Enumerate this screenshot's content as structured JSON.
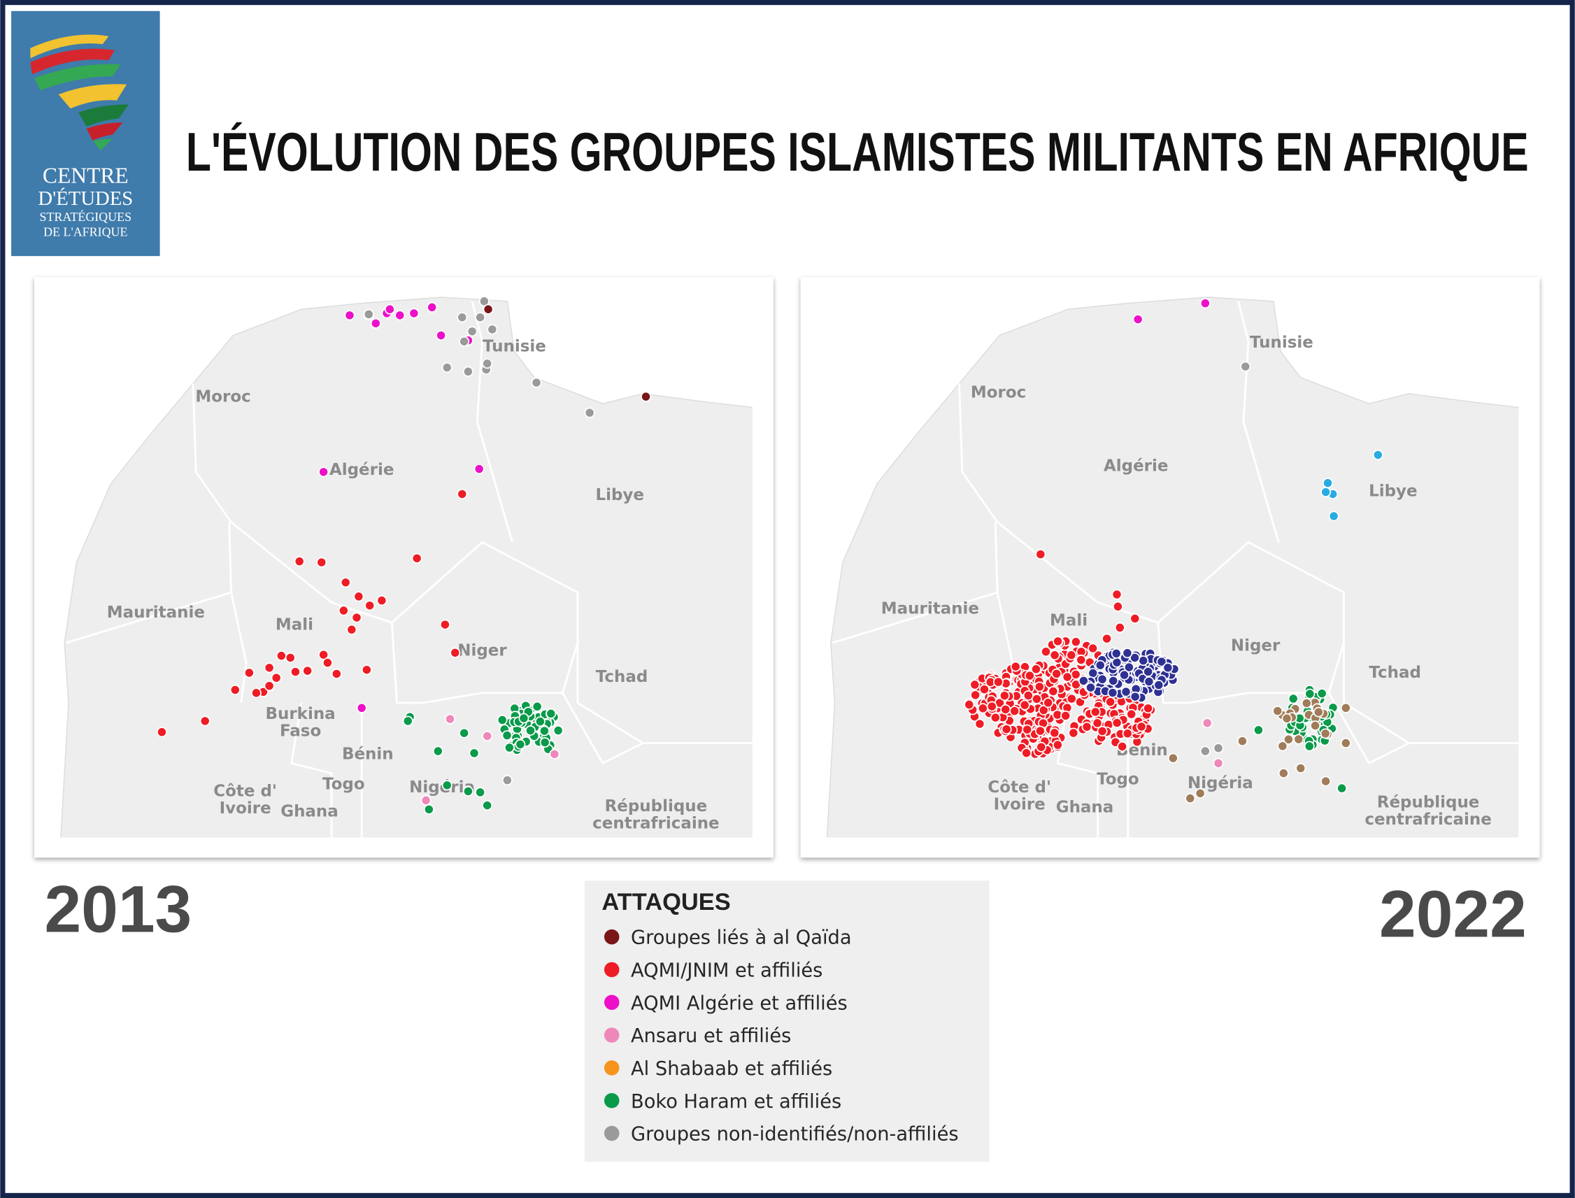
{
  "logo": {
    "lines": [
      "CENTRE",
      "D'ÉTUDES",
      "STRATÉGIQUES",
      "DE L'AFRIQUE"
    ]
  },
  "title": "L'ÉVOLUTION DES GROUPES ISLAMISTES MILITANTS EN AFRIQUE",
  "maps": [
    {
      "year": "2013",
      "labels": [
        [
          "Moroc"
        ],
        [
          "Algérie"
        ],
        [
          "Tunisie"
        ],
        [
          "Libye"
        ],
        [
          "Mauritanie"
        ],
        [
          "Mali"
        ],
        [
          "Niger"
        ],
        [
          "Tchad"
        ],
        [
          "Burkina",
          "Faso"
        ],
        [
          "Bénin"
        ],
        [
          "Côte d'",
          "Ivoire"
        ],
        [
          "Togo"
        ],
        [
          "Ghana"
        ],
        [
          "Nigéria"
        ],
        [
          "République",
          "centrafricaine"
        ]
      ]
    },
    {
      "year": "2022",
      "labels": [
        [
          "Moroc"
        ],
        [
          "Algérie"
        ],
        [
          "Tunisie"
        ],
        [
          "Libye"
        ],
        [
          "Mauritanie"
        ],
        [
          "Mali"
        ],
        [
          "Niger"
        ],
        [
          "Tchad"
        ],
        [
          "Bénin"
        ],
        [
          "Côte d'",
          "Ivoire"
        ],
        [
          "Togo"
        ],
        [
          "Ghana"
        ],
        [
          "Nigéria"
        ],
        [
          "République",
          "centrafricaine"
        ]
      ]
    }
  ],
  "legend": {
    "title": "ATTAQUES",
    "items": [
      {
        "label": "Groupes liés à al Qaïda",
        "color": "#7a1518"
      },
      {
        "label": "AQMI/JNIM et affiliés",
        "color": "#ee1c25"
      },
      {
        "label": "AQMI Algérie et affiliés",
        "color": "#ec10c8"
      },
      {
        "label": "Ansaru et affiliés",
        "color": "#ee88bb"
      },
      {
        "label": "Al Shabaab et affiliés",
        "color": "#f7941d"
      },
      {
        "label": "Boko Haram et affiliés",
        "color": "#0a9a4a"
      },
      {
        "label": "Groupes non-identifiés/non-affiliés",
        "color": "#9a9a9a"
      }
    ]
  }
}
